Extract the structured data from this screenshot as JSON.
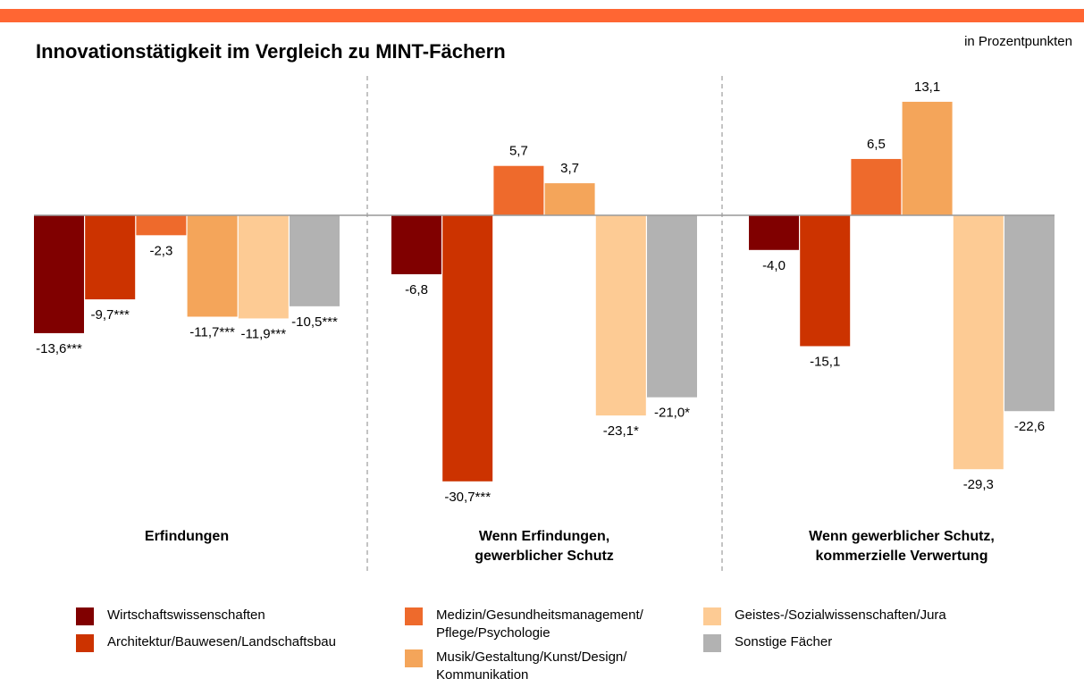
{
  "chart_data": {
    "type": "bar",
    "title": "Innovationstätigkeit im Vergleich zu MINT-Fächern",
    "subtitle": "in Prozentpunkten",
    "categories": [
      "Erfindungen",
      "Wenn Erfindungen,\ngewerblicher Schutz",
      "Wenn gewerblicher Schutz,\nkommerzielle Verwertung"
    ],
    "series": [
      {
        "name": "Wirtschaftswissenschaften",
        "color": "#800000",
        "values": [
          -13.6,
          -6.8,
          -4.0
        ],
        "value_labels": [
          "-13,6***",
          "-6,8",
          "-4,0"
        ]
      },
      {
        "name": "Architektur/Bauwesen/Landschaftsbau",
        "color": "#cc3300",
        "values": [
          -9.7,
          -30.7,
          -15.1
        ],
        "value_labels": [
          "-9,7***",
          "-30,7***",
          "-15,1"
        ]
      },
      {
        "name": "Medizin/Gesundheitsmanagement/\nPflege/Psychologie",
        "color": "#ee6a2c",
        "values": [
          -2.3,
          5.7,
          6.5
        ],
        "value_labels": [
          "-2,3",
          "5,7",
          "6,5"
        ]
      },
      {
        "name": "Musik/Gestaltung/Kunst/Design/\nKommunikation",
        "color": "#f4a55a",
        "values": [
          -11.7,
          3.7,
          13.1
        ],
        "value_labels": [
          "-11,7***",
          "3,7",
          "13,1"
        ]
      },
      {
        "name": "Geistes-/Sozialwissenschaften/Jura",
        "color": "#fdcb94",
        "values": [
          -11.9,
          -23.1,
          -29.3
        ],
        "value_labels": [
          "-11,9***",
          "-23,1*",
          "-29,3"
        ]
      },
      {
        "name": "Sonstige Fächer",
        "color": "#b2b2b2",
        "values": [
          -10.5,
          -21.0,
          -22.6
        ],
        "value_labels": [
          "-10,5***",
          "-21,0*",
          "-22,6"
        ]
      }
    ]
  }
}
